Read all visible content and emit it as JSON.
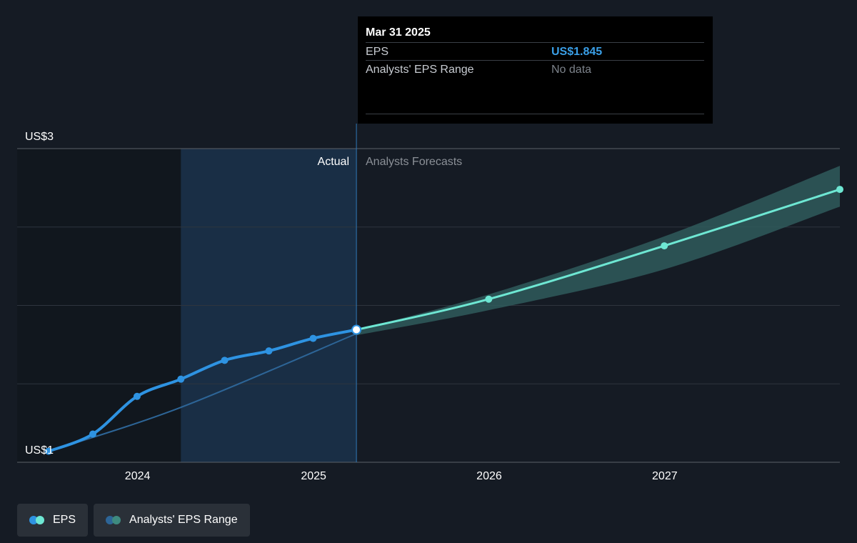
{
  "tooltip": {
    "date": "Mar 31 2025",
    "rows": [
      {
        "label": "EPS",
        "value": "US$1.845"
      },
      {
        "label": "Analysts' EPS Range",
        "value": "No data"
      }
    ]
  },
  "sections": {
    "actual": "Actual",
    "forecast": "Analysts Forecasts"
  },
  "legend": [
    {
      "label": "EPS",
      "colors": [
        "#2e93e2",
        "#6ee7d3"
      ]
    },
    {
      "label": "Analysts' EPS Range",
      "colors": [
        "#2d6597",
        "#3e8a7f"
      ]
    }
  ],
  "colors": {
    "actual_line": "#2e93e2",
    "forecast_line": "#6ee7d3",
    "range_band": "#2f5a5c",
    "highlight": "#1b3550",
    "background": "#151b24"
  },
  "chart_data": {
    "type": "line",
    "title": "",
    "xlabel": "",
    "ylabel": "",
    "y_tick_labels": [
      "US$3",
      "US$1"
    ],
    "ylim": [
      1,
      3
    ],
    "x_tick_labels": [
      "2024",
      "2025",
      "2026",
      "2027"
    ],
    "xlim": [
      "2023-06-30",
      "2027-12-31"
    ],
    "divider_date": "2025-03-31",
    "highlight_start": "2024-03-31",
    "grid": true,
    "legend_position": "bottom-left",
    "series": [
      {
        "name": "EPS",
        "kind": "actual",
        "points": [
          {
            "date": "2023-06-30",
            "value": 1.07
          },
          {
            "date": "2023-09-30",
            "value": 1.18
          },
          {
            "date": "2023-12-31",
            "value": 1.42
          },
          {
            "date": "2024-03-31",
            "value": 1.53
          },
          {
            "date": "2024-06-30",
            "value": 1.65
          },
          {
            "date": "2024-09-30",
            "value": 1.71
          },
          {
            "date": "2024-12-31",
            "value": 1.79
          },
          {
            "date": "2025-03-31",
            "value": 1.845
          }
        ]
      },
      {
        "name": "EPS",
        "kind": "forecast",
        "points": [
          {
            "date": "2025-03-31",
            "value": 1.845
          },
          {
            "date": "2025-12-31",
            "value": 2.04
          },
          {
            "date": "2026-12-31",
            "value": 2.38
          },
          {
            "date": "2027-12-31",
            "value": 2.74
          }
        ]
      },
      {
        "name": "Analysts' EPS Range",
        "kind": "range",
        "points": [
          {
            "date": "2025-03-31",
            "low": 1.81,
            "high": 1.845
          },
          {
            "date": "2025-12-31",
            "low": 1.97,
            "high": 2.07
          },
          {
            "date": "2026-12-31",
            "low": 2.23,
            "high": 2.44
          },
          {
            "date": "2027-12-31",
            "low": 2.63,
            "high": 2.89
          }
        ]
      },
      {
        "name": "Analysts' EPS Range",
        "kind": "past-range",
        "points": [
          {
            "date": "2023-06-30",
            "value": 1.07
          },
          {
            "date": "2024-03-31",
            "value": 1.35
          },
          {
            "date": "2025-03-31",
            "value": 1.82
          }
        ]
      }
    ]
  }
}
